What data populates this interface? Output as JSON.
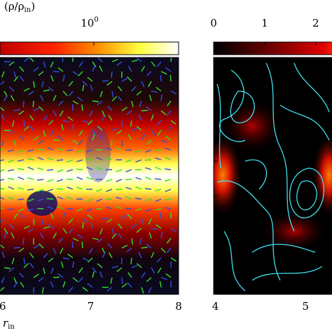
{
  "panels": [
    {
      "colorbar": {
        "label": "(ρ/ρ",
        "label_sub": "in",
        "label_end": ")",
        "log": true,
        "lim": [
          0.1,
          8
        ],
        "ticks": [
          {
            "value": 1,
            "label": "10",
            "exponent": "0"
          }
        ]
      },
      "xlim": [
        5.97,
        8
      ],
      "xticks": [
        6,
        7,
        8
      ],
      "xlabel": "r",
      "xlabel_sub": "in"
    },
    {
      "colorbar": {
        "log": false,
        "lim": [
          0,
          2.4
        ],
        "ticks": [
          0,
          1,
          2
        ]
      },
      "xlim": [
        3.98,
        5.34
      ],
      "xticks": [
        4,
        5
      ]
    }
  ]
}
